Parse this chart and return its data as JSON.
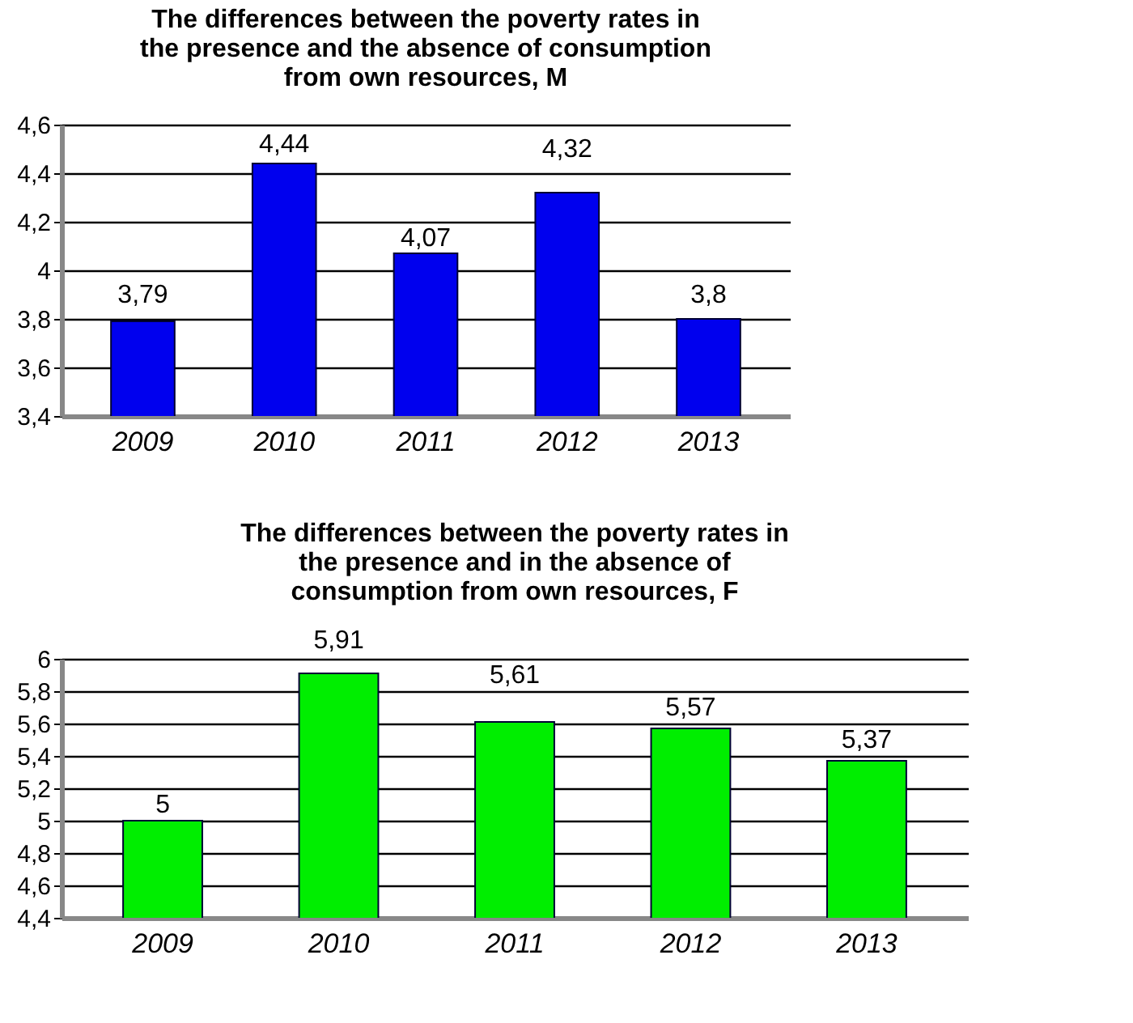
{
  "chart_data": [
    {
      "type": "bar",
      "title": "The differences between the poverty rates in the presence and the absence of consumption from own resources, M",
      "categories": [
        "2009",
        "2010",
        "2011",
        "2012",
        "2013"
      ],
      "series": [
        {
          "color": "#0000ee",
          "values": [
            3.79,
            4.44,
            4.07,
            4.32,
            3.8
          ],
          "value_labels": [
            "3,79",
            "4,44",
            "4,07",
            "4,32",
            "3,8"
          ]
        }
      ],
      "ylim": [
        3.4,
        4.6
      ],
      "yticks": [
        {
          "value": 3.4,
          "label": "3,4"
        },
        {
          "value": 3.6,
          "label": "3,6"
        },
        {
          "value": 3.8,
          "label": "3,8"
        },
        4,
        {
          "value": 4.2,
          "label": "4,2"
        },
        {
          "value": 4.4,
          "label": "4,4"
        },
        {
          "value": 4.6,
          "label": "4,6"
        }
      ],
      "grid": "y"
    },
    {
      "type": "bar",
      "title": "The differences between the poverty rates in the presence and in the absence of consumption from own resources, F",
      "categories": [
        "2009",
        "2010",
        "2011",
        "2012",
        "2013"
      ],
      "series": [
        {
          "color": "#00ee00",
          "values": [
            5,
            5.91,
            5.61,
            5.57,
            5.37
          ],
          "value_labels": [
            "5",
            "5,91",
            "5,61",
            "5,57",
            "5,37"
          ]
        }
      ],
      "ylim": [
        4.4,
        6
      ],
      "yticks": [
        {
          "value": 4.4,
          "label": "4,4"
        },
        {
          "value": 4.6,
          "label": "4,6"
        },
        {
          "value": 4.8,
          "label": "4,8"
        },
        5,
        {
          "value": 5.2,
          "label": "5,2"
        },
        {
          "value": 5.4,
          "label": "5,4"
        },
        {
          "value": 5.6,
          "label": "5,6"
        },
        {
          "value": 5.8,
          "label": "5,8"
        },
        6
      ],
      "grid": "y"
    }
  ]
}
